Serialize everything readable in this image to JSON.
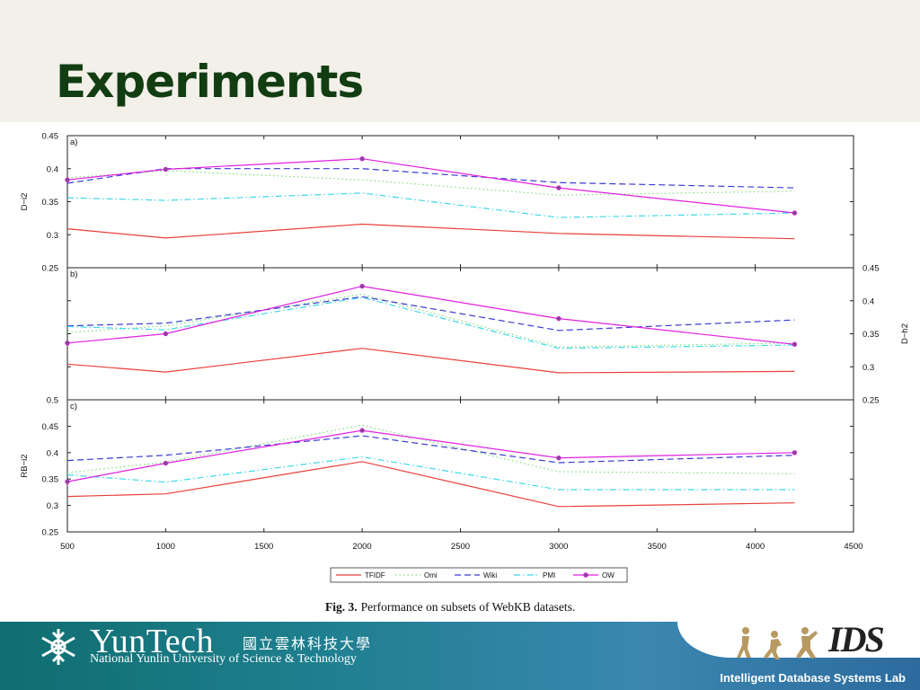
{
  "slide": {
    "title": "Experiments"
  },
  "caption": {
    "label": "Fig. 3.",
    "text": "Performance on subsets of WebKB datasets."
  },
  "footer": {
    "logo_text": "YunTech",
    "logo_cn": "國立雲林科技大學",
    "logo_sub": "National Yunlin University of Science & Technology",
    "lab_name": "Intelligent Database Systems Lab",
    "lab_logo_text": "IDS"
  },
  "colors": {
    "TFIDF": "#e8403b",
    "Omi": "#7ddc7d",
    "Wiki": "#3b3bd0",
    "PMI": "#3ed8e8",
    "OW": "#e020e0",
    "header_bg": "#f2f0e8",
    "title": "#123d12"
  },
  "chart_data": {
    "type": "line",
    "x": [
      500,
      1000,
      2000,
      3000,
      4200
    ],
    "xlim": [
      500,
      4500
    ],
    "x_ticks": [
      500,
      1000,
      1500,
      2000,
      2500,
      3000,
      3500,
      4000,
      4500
    ],
    "legend": [
      "TFIDF",
      "Omi",
      "Wiki",
      "PMI",
      "OW"
    ],
    "legend_position": "bottom-center",
    "panels": [
      {
        "id": "a)",
        "ylabel": "D−i2",
        "axis_side": "left",
        "ylim": [
          0.25,
          0.45
        ],
        "y_ticks": [
          0.25,
          0.3,
          0.35,
          0.4,
          0.45
        ],
        "series": [
          {
            "name": "TFIDF",
            "values": [
              0.309,
              0.295,
              0.316,
              0.302,
              0.294
            ]
          },
          {
            "name": "Omi",
            "values": [
              0.386,
              0.397,
              0.383,
              0.36,
              0.366
            ]
          },
          {
            "name": "Wiki",
            "values": [
              0.378,
              0.4,
              0.4,
              0.379,
              0.371
            ]
          },
          {
            "name": "PMI",
            "values": [
              0.356,
              0.352,
              0.363,
              0.326,
              0.333
            ]
          },
          {
            "name": "OW",
            "values": [
              0.383,
              0.399,
              0.415,
              0.371,
              0.333
            ]
          }
        ]
      },
      {
        "id": "b)",
        "ylabel": "D−h2",
        "axis_side": "right",
        "ylim": [
          0.25,
          0.45
        ],
        "y_ticks": [
          0.25,
          0.3,
          0.35,
          0.4,
          0.45
        ],
        "series": [
          {
            "name": "TFIDF",
            "values": [
              0.304,
              0.292,
              0.328,
              0.291,
              0.293
            ]
          },
          {
            "name": "Omi",
            "values": [
              0.352,
              0.362,
              0.41,
              0.33,
              0.336
            ]
          },
          {
            "name": "Wiki",
            "values": [
              0.362,
              0.366,
              0.406,
              0.355,
              0.371
            ]
          },
          {
            "name": "PMI",
            "values": [
              0.361,
              0.356,
              0.405,
              0.328,
              0.333
            ]
          },
          {
            "name": "OW",
            "values": [
              0.336,
              0.35,
              0.422,
              0.373,
              0.334
            ]
          }
        ]
      },
      {
        "id": "c)",
        "ylabel": "RB−i2",
        "axis_side": "left",
        "ylim": [
          0.25,
          0.5
        ],
        "y_ticks": [
          0.25,
          0.3,
          0.35,
          0.4,
          0.45,
          0.5
        ],
        "series": [
          {
            "name": "TFIDF",
            "values": [
              0.317,
              0.322,
              0.383,
              0.298,
              0.305
            ]
          },
          {
            "name": "Omi",
            "values": [
              0.362,
              0.382,
              0.452,
              0.364,
              0.36
            ]
          },
          {
            "name": "Wiki",
            "values": [
              0.385,
              0.395,
              0.432,
              0.381,
              0.395
            ]
          },
          {
            "name": "PMI",
            "values": [
              0.358,
              0.344,
              0.392,
              0.33,
              0.33
            ]
          },
          {
            "name": "OW",
            "values": [
              0.345,
              0.38,
              0.442,
              0.39,
              0.4
            ]
          }
        ]
      }
    ]
  }
}
